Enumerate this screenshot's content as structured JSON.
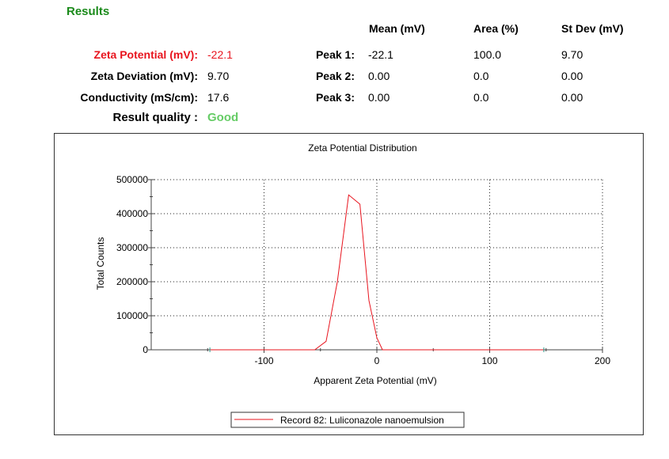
{
  "results": {
    "title": "Results",
    "columns": {
      "mean": "Mean (mV)",
      "area": "Area (%)",
      "stdev": "St Dev (mV)"
    },
    "zeta_potential": {
      "label": "Zeta Potential (mV):",
      "value": "-22.1"
    },
    "zeta_deviation": {
      "label": "Zeta Deviation (mV):",
      "value": "9.70"
    },
    "conductivity": {
      "label": "Conductivity (mS/cm):",
      "value": "17.6"
    },
    "result_quality": {
      "label": "Result quality :",
      "value": "Good"
    },
    "peaks": [
      {
        "label": "Peak 1:",
        "mean": "-22.1",
        "area": "100.0",
        "stdev": "9.70"
      },
      {
        "label": "Peak 2:",
        "mean": "0.00",
        "area": "0.0",
        "stdev": "0.00"
      },
      {
        "label": "Peak 3:",
        "mean": "0.00",
        "area": "0.0",
        "stdev": "0.00"
      }
    ]
  },
  "colors": {
    "title_green": "#1a8a1a",
    "zeta_red": "#e8141e",
    "good_green": "#66cc66",
    "series_red": "#e8141e"
  },
  "chart_data": {
    "type": "line",
    "title": "Zeta Potential Distribution",
    "xlabel": "Apparent Zeta Potential (mV)",
    "ylabel": "Total Counts",
    "xlim": [
      -200,
      200
    ],
    "ylim": [
      0,
      500000
    ],
    "xticks": [
      -100,
      0,
      100,
      200
    ],
    "yticks": [
      0,
      100000,
      200000,
      300000,
      400000,
      500000
    ],
    "grid": true,
    "legend_position": "bottom-center",
    "series": [
      {
        "name": "Record 82: Luliconazole nanoemulsion",
        "x": [
          -148,
          -100,
          -55,
          -45,
          -35,
          -25,
          -15,
          -7,
          0,
          5,
          50,
          100,
          148
        ],
        "y": [
          0,
          0,
          0,
          25000,
          200000,
          455000,
          428000,
          145000,
          35000,
          0,
          0,
          0,
          0
        ]
      }
    ]
  }
}
